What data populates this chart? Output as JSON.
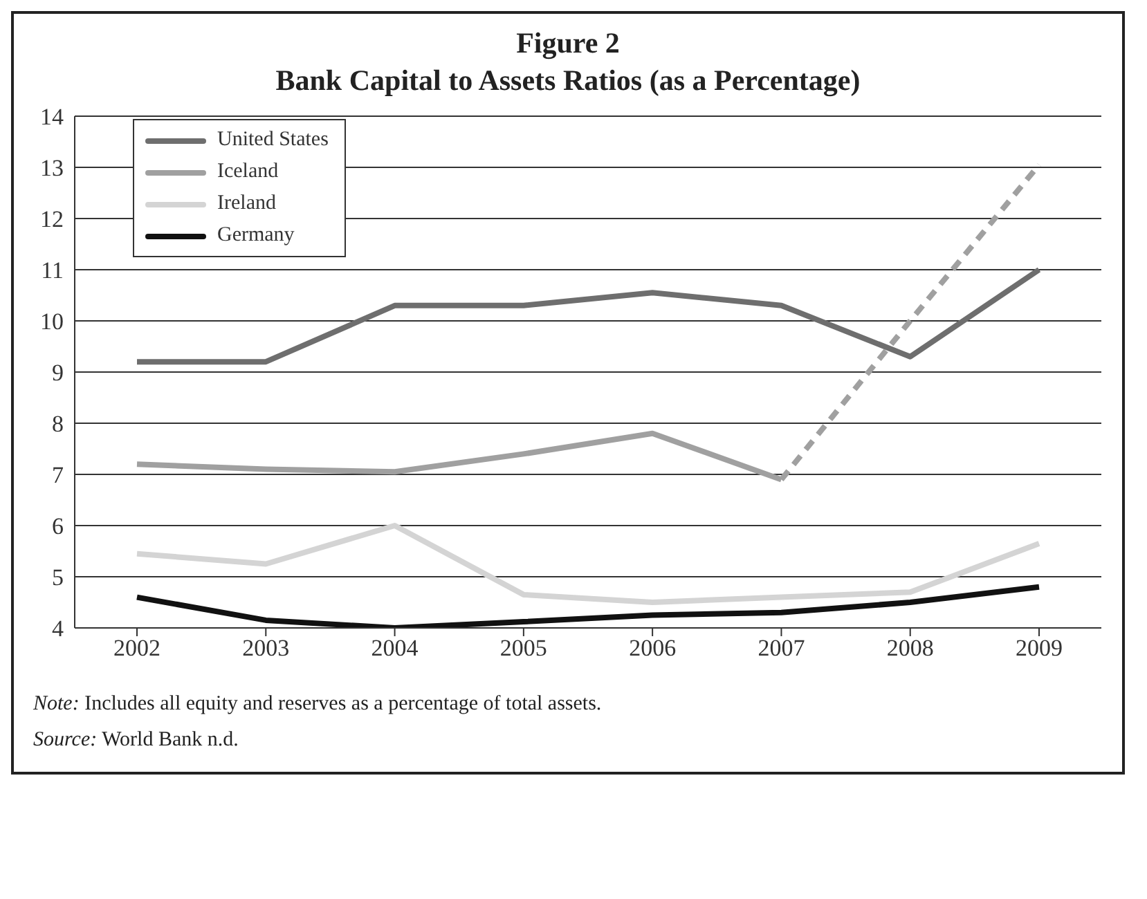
{
  "chart_data": {
    "type": "line",
    "title": "Figure 2",
    "subtitle": "Bank Capital to Assets Ratios (as a Percentage)",
    "categories": [
      "2002",
      "2003",
      "2004",
      "2005",
      "2006",
      "2007",
      "2008",
      "2009"
    ],
    "series": [
      {
        "name": "United States",
        "color": "#6e6e6e",
        "values": [
          9.2,
          9.2,
          10.3,
          10.3,
          10.55,
          10.3,
          9.3,
          11.0
        ]
      },
      {
        "name": "Iceland",
        "color": "#a0a0a0",
        "values": [
          7.2,
          7.1,
          7.05,
          7.4,
          7.8,
          6.9,
          null,
          null
        ]
      },
      {
        "name": "Ireland",
        "color": "#d4d4d4",
        "values": [
          5.45,
          5.25,
          6.0,
          4.65,
          4.5,
          4.6,
          4.7,
          5.65
        ]
      },
      {
        "name": "Germany",
        "color": "#111111",
        "values": [
          4.6,
          4.15,
          4.0,
          4.12,
          4.25,
          4.3,
          4.5,
          4.8
        ]
      },
      {
        "color": "#a0a0a0",
        "line_style": "dashed",
        "values": [
          null,
          null,
          null,
          null,
          null,
          6.9,
          10.0,
          13.05
        ]
      }
    ],
    "ylim": [
      4,
      14
    ],
    "yticks": [
      4,
      5,
      6,
      7,
      8,
      9,
      10,
      11,
      12,
      13,
      14
    ],
    "grid": "y",
    "legend": "top left",
    "marker": "none",
    "line_style": "solid",
    "annotations": [
      "Note: Includes all equity and reserves as a percentage of total assets.",
      "Source: World Bank n.d."
    ]
  }
}
